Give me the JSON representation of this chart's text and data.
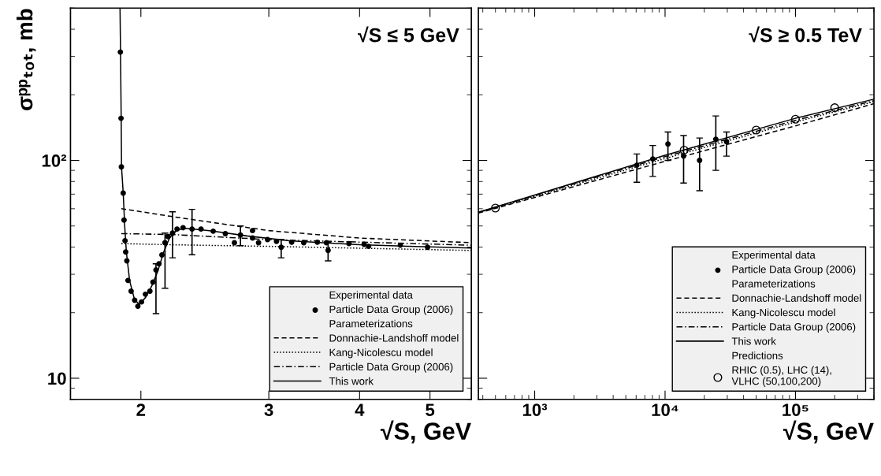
{
  "chart_data": [
    {
      "type": "line",
      "xlabel": "√S, GeV",
      "ylabel": "σᵖᵖₜₒₜ, mb",
      "log": "xy",
      "xlim": [
        1.6,
        5.7
      ],
      "xticks": [
        2,
        3,
        4,
        5
      ],
      "ylim": [
        8,
        500
      ],
      "yticks": [
        {
          "value": 10,
          "label": "10"
        },
        {
          "value": 100,
          "label": "10²"
        }
      ],
      "legend": "bottom right",
      "grid": false,
      "annotations": [
        "√S ≤ 5 GeV",
        "Experimental data",
        "Parameterizations"
      ],
      "series": [
        {
          "name": "Particle Data Group (2006)",
          "type": "scatter",
          "marker": "circle",
          "color": "#000000",
          "x": [
            1.874,
            1.878,
            1.88,
            1.891,
            1.896,
            1.902,
            1.906,
            1.913,
            1.92,
            1.939,
            1.961,
            1.981,
            2.004,
            2.029,
            2.058,
            2.078,
            2.098,
            2.118,
            2.138,
            2.159,
            2.18,
            2.211,
            2.243,
            2.286,
            2.352,
            2.42,
            2.515,
            2.614,
            2.69,
            2.742,
            2.849,
            2.849,
            2.904,
            2.988,
            3.074,
            3.12,
            3.225,
            3.351,
            3.499,
            3.601,
            3.62,
            3.868,
            4.058,
            4.116,
            4.551,
            4.962
          ],
          "values": [
            314,
            156,
            93.4,
            70.8,
            53.2,
            42.8,
            38.0,
            34.6,
            28.1,
            25.1,
            22.8,
            21.4,
            22.4,
            24.3,
            25.1,
            27.6,
            31.4,
            33.5,
            36.8,
            41.9,
            44.7,
            46.4,
            48.4,
            49.1,
            48.4,
            48.4,
            47.3,
            46.1,
            41.9,
            45.4,
            47.6,
            44.0,
            41.9,
            43.3,
            42.5,
            39.9,
            42.1,
            41.9,
            42.1,
            41.9,
            38.6,
            41.5,
            41.2,
            40.3,
            40.8,
            39.9
          ],
          "errors": [
            null,
            null,
            null,
            null,
            null,
            null,
            null,
            null,
            null,
            null,
            null,
            null,
            null,
            null,
            null,
            null,
            [
              19.8,
              33.5
            ],
            null,
            null,
            [
              25.9,
              46.4
            ],
            null,
            [
              35.7,
              58.1
            ],
            null,
            null,
            [
              36.9,
              59.6
            ],
            null,
            null,
            null,
            null,
            [
              40.6,
              50.0
            ],
            null,
            null,
            null,
            null,
            null,
            [
              35.7,
              43.3
            ],
            null,
            null,
            null,
            null,
            [
              34.6,
              42.1
            ],
            null,
            null,
            null,
            null,
            null
          ]
        },
        {
          "name": "Donnachie-Landshoff model",
          "line_style": "dashed",
          "color": "#000000",
          "x": [
            1.88,
            2.3,
            3.0,
            4.0,
            5.7
          ],
          "values": [
            60.0,
            54.1,
            47.6,
            44.0,
            41.9
          ]
        },
        {
          "name": "Kang-Nicolescu model",
          "line_style": "dotted",
          "color": "#000000",
          "x": [
            1.88,
            2.2,
            3.0,
            5.7
          ],
          "values": [
            41.5,
            41.0,
            40.3,
            38.6
          ]
        },
        {
          "name": "Particle Data Group (2006)",
          "line_style": "dashdot",
          "color": "#000000",
          "x": [
            1.88,
            2.2,
            3.0,
            5.7
          ],
          "values": [
            46.1,
            45.7,
            43.3,
            40.8
          ]
        },
        {
          "name": "This work",
          "line_style": "solid",
          "color": "#000000",
          "x": [
            1.872,
            1.875,
            1.879,
            1.881,
            1.891,
            1.9,
            1.91,
            1.93,
            1.96,
            1.99,
            2.03,
            2.07,
            2.11,
            2.15,
            2.19,
            2.24,
            2.3,
            2.5,
            2.8,
            3.2,
            3.6,
            4.0,
            4.5,
            5.0,
            5.7
          ],
          "values": [
            500,
            314,
            156,
            93,
            71,
            50,
            38,
            28,
            23,
            21.8,
            23.5,
            26.5,
            31,
            38,
            44,
            47.8,
            48.8,
            47.5,
            45,
            42.8,
            41.8,
            41.0,
            40.5,
            40.1,
            39.6
          ]
        }
      ]
    },
    {
      "type": "line",
      "xlabel": "√S, GeV",
      "log": "xy",
      "xlim": [
        370,
        400000
      ],
      "xticks": [
        {
          "value": 1000,
          "label": "10³"
        },
        {
          "value": 10000,
          "label": "10⁴"
        },
        {
          "value": 100000,
          "label": "10⁵"
        }
      ],
      "ylim": [
        8,
        500
      ],
      "tick_labels": "x",
      "legend": "bottom right",
      "grid": false,
      "annotations": [
        "√S ≥ 0.5 TeV",
        "Experimental data",
        "Parameterizations",
        "Predictions"
      ],
      "series": [
        {
          "name": "Particle Data Group (2006)",
          "type": "scatter",
          "marker": "circle",
          "color": "#000000",
          "x": [
            6070,
            8050,
            10520,
            13870,
            18400,
            24500,
            29600
          ],
          "values": [
            95,
            101.6,
            118.8,
            104.6,
            100,
            125,
            121.9
          ],
          "errors": [
            [
              79.4,
              107
            ],
            [
              84.4,
              117
            ],
            [
              100,
              135
            ],
            [
              78.7,
              130
            ],
            [
              72.6,
              126.7
            ],
            [
              90,
              160
            ],
            [
              104.6,
              135
            ]
          ]
        },
        {
          "name": "Donnachie-Landshoff model",
          "line_style": "dashed",
          "color": "#000000",
          "x": [
            370,
            10000,
            100000,
            400000
          ],
          "values": [
            57.3,
            99,
            144,
            182
          ]
        },
        {
          "name": "Kang-Nicolescu model",
          "line_style": "dotted",
          "color": "#000000",
          "x": [
            370,
            10000,
            100000,
            400000
          ],
          "values": [
            57.5,
            102,
            150,
            186
          ]
        },
        {
          "name": "Particle Data Group (2006)",
          "line_style": "dashdot",
          "color": "#000000",
          "x": [
            370,
            10000,
            100000,
            400000
          ],
          "values": [
            57.7,
            104,
            152.6,
            188
          ]
        },
        {
          "name": "This work",
          "line_style": "solid",
          "color": "#000000",
          "x": [
            370,
            10000,
            100000,
            400000
          ],
          "values": [
            57.8,
            105.6,
            156,
            191
          ]
        },
        {
          "name": "RHIC (0.5), LHC (14),\nVLHC (50,100,200)",
          "type": "scatter",
          "marker": "circle",
          "color": "#000000",
          "x": [
            500,
            14000,
            50000,
            100000,
            200000
          ],
          "values": [
            60.4,
            111.5,
            137.8,
            154.5,
            174.6
          ]
        }
      ]
    }
  ]
}
